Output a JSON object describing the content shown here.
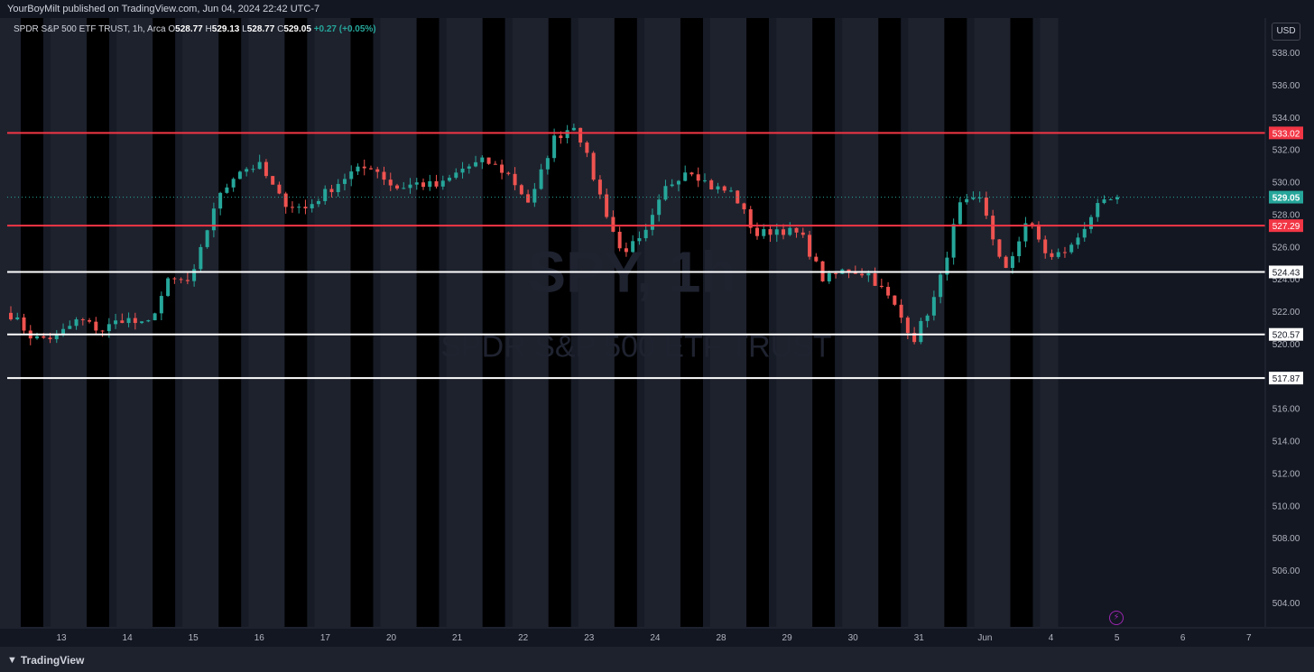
{
  "publisher": "YourBoyMilt published on TradingView.com, Jun 04, 2024 22:42 UTC-7",
  "brand": "TradingView",
  "currency_button": "USD",
  "legend": {
    "title": "SPDR S&P 500 ETF TRUST, 1h, Arca",
    "open_key": "O",
    "open": "528.77",
    "high_key": "H",
    "high": "529.13",
    "low_key": "L",
    "low": "528.77",
    "close_key": "C",
    "close": "529.05",
    "change": "+0.27 (+0.05%)"
  },
  "watermark": {
    "symbol": "SPY, 1h",
    "name": "SPDR S&P 500 ETF TRUST"
  },
  "colors": {
    "background": "#131722",
    "session_dark": "#000000",
    "session_light": "#1e222d",
    "up": "#26a69a",
    "down": "#ef5350",
    "resistance_line": "#f23645",
    "support_line": "#ffffff"
  },
  "chart_data": {
    "type": "candlestick",
    "y_axis": {
      "ylim": [
        503,
        539
      ],
      "ticks": [
        "504.00",
        "506.00",
        "508.00",
        "510.00",
        "512.00",
        "514.00",
        "516.00",
        "518.00",
        "520.00",
        "522.00",
        "524.00",
        "526.00",
        "528.00",
        "530.00",
        "532.00",
        "534.00",
        "536.00",
        "538.00"
      ],
      "position": "right"
    },
    "x_axis": {
      "labels": [
        "13",
        "14",
        "15",
        "16",
        "17",
        "20",
        "21",
        "22",
        "23",
        "24",
        "28",
        "29",
        "30",
        "31",
        "Jun",
        "4",
        "5",
        "6",
        "7"
      ]
    },
    "horizontal_lines": [
      {
        "value": 533.02,
        "label": "533.02",
        "color": "#f23645"
      },
      {
        "value": 527.29,
        "label": "527.29",
        "color": "#f23645"
      },
      {
        "value": 524.43,
        "label": "524.43",
        "color": "#ffffff"
      },
      {
        "value": 520.57,
        "label": "520.57",
        "color": "#ffffff"
      },
      {
        "value": 517.87,
        "label": "517.87",
        "color": "#ffffff"
      }
    ],
    "last_price": {
      "value": 529.05,
      "label": "529.05",
      "color": "#26a69a"
    },
    "close_path": [
      [
        "13",
        521.8
      ],
      [
        "13",
        520.3
      ],
      [
        "13",
        520.4
      ],
      [
        "14",
        521.5
      ],
      [
        "14",
        520.8
      ],
      [
        "14",
        521.6
      ],
      [
        "15",
        521.0
      ],
      [
        "15",
        523.9
      ],
      [
        "15",
        523.8
      ],
      [
        "16",
        528.5
      ],
      [
        "16",
        530.7
      ],
      [
        "16",
        531.0
      ],
      [
        "17",
        528.8
      ],
      [
        "17",
        528.3
      ],
      [
        "17",
        529.4
      ],
      [
        "20",
        530.5
      ],
      [
        "20",
        531.0
      ],
      [
        "20",
        529.6
      ],
      [
        "21",
        529.9
      ],
      [
        "21",
        529.7
      ],
      [
        "21",
        530.8
      ],
      [
        "22",
        531.3
      ],
      [
        "22",
        530.5
      ],
      [
        "22",
        528.6
      ],
      [
        "23",
        532.6
      ],
      [
        "23",
        533.6
      ],
      [
        "23",
        529.5
      ],
      [
        "24",
        525.7
      ],
      [
        "24",
        526.4
      ],
      [
        "24",
        529.6
      ],
      [
        "28",
        530.9
      ],
      [
        "28",
        529.7
      ],
      [
        "28",
        529.3
      ],
      [
        "29",
        526.7
      ],
      [
        "29",
        527.1
      ],
      [
        "29",
        526.7
      ],
      [
        "30",
        523.9
      ],
      [
        "30",
        524.6
      ],
      [
        "30",
        524.3
      ],
      [
        "31",
        522.6
      ],
      [
        "31",
        520.3
      ],
      [
        "31",
        523.1
      ],
      [
        "Jun",
        528.5
      ],
      [
        "Jun",
        528.9
      ],
      [
        "Jun",
        524.2
      ],
      [
        "4",
        527.7
      ],
      [
        "4",
        525.2
      ],
      [
        "4",
        526.0
      ],
      [
        "5",
        528.3
      ],
      [
        "5",
        529.05
      ]
    ]
  }
}
